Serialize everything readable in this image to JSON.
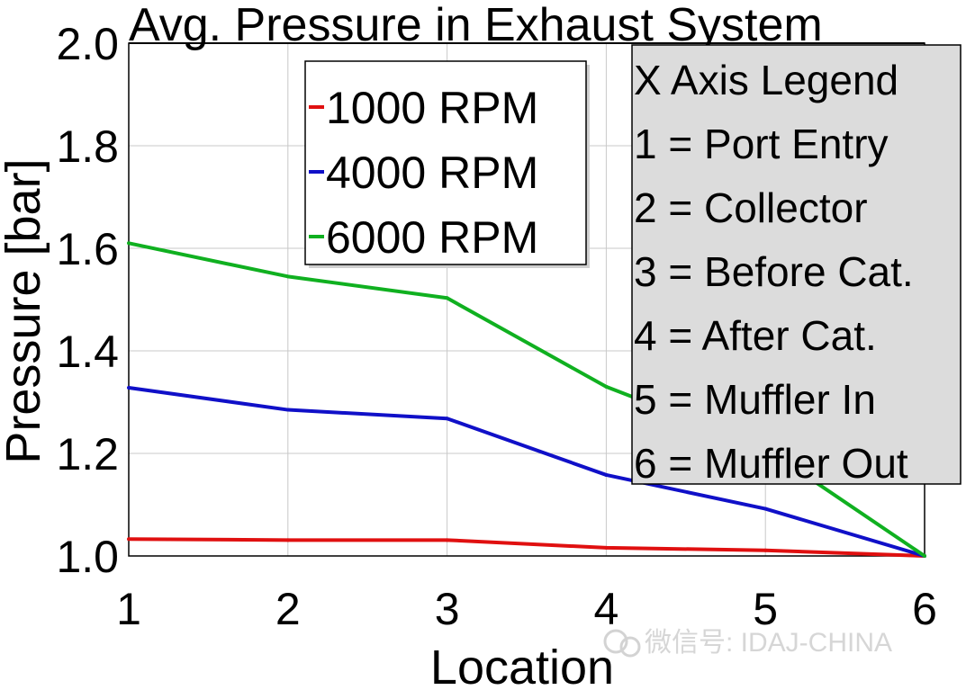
{
  "chart_data": {
    "type": "line",
    "title": "Avg. Pressure in Exhaust System",
    "xlabel": "Location",
    "ylabel": "Pressure [bar]",
    "x": [
      1,
      2,
      3,
      4,
      5,
      6
    ],
    "xlim": [
      1,
      6
    ],
    "ylim": [
      1.0,
      2.0
    ],
    "xticks": [
      "1",
      "2",
      "3",
      "4",
      "5",
      "6"
    ],
    "yticks": [
      "1.0",
      "1.2",
      "1.4",
      "1.6",
      "1.8",
      "2.0"
    ],
    "grid": true,
    "series": [
      {
        "name": "1000 RPM",
        "color": "#e01010",
        "values": [
          1.033,
          1.031,
          1.031,
          1.016,
          1.011,
          1.0
        ]
      },
      {
        "name": "4000 RPM",
        "color": "#1010c8",
        "values": [
          1.328,
          1.285,
          1.268,
          1.158,
          1.092,
          1.0
        ]
      },
      {
        "name": "6000 RPM",
        "color": "#10b020",
        "values": [
          1.61,
          1.545,
          1.503,
          1.33,
          1.21,
          1.0
        ]
      }
    ],
    "legend_position": "top-left",
    "axis_legend": {
      "title": "X Axis Legend",
      "items": [
        "1 = Port Entry",
        "2 = Collector",
        "3 = Before Cat.",
        "4 = After Cat.",
        "5 = Muffler In",
        "6 = Muffler Out"
      ]
    },
    "watermark": "微信号: IDAJ-CHINA"
  }
}
